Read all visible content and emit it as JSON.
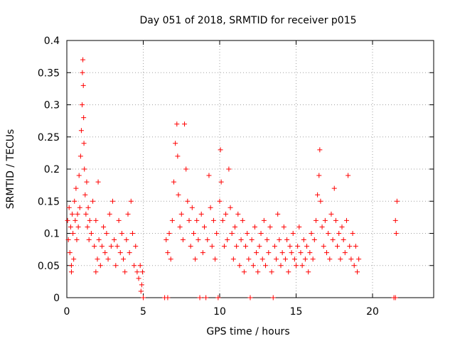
{
  "chart_data": {
    "type": "scatter",
    "title": "Day 051 of 2018, SRMTID for receiver p015",
    "xlabel": "GPS time / hours",
    "ylabel": "SRMTID / TECUs",
    "xlim": [
      0,
      24
    ],
    "ylim": [
      0,
      0.4
    ],
    "xticks": [
      0,
      5,
      10,
      15,
      20
    ],
    "xtick_labels": [
      "0",
      "5",
      "10",
      "15",
      "20"
    ],
    "yticks": [
      0,
      0.05,
      0.1,
      0.15,
      0.2,
      0.25,
      0.3,
      0.35,
      0.4
    ],
    "ytick_labels": [
      "0",
      "0.05",
      "0.1",
      "0.15",
      "0.2",
      "0.25",
      "0.3",
      "0.35",
      "0.4"
    ],
    "grid": true,
    "marker": "+",
    "color": "#ff0000",
    "series": [
      {
        "name": "SRMTID",
        "points": [
          [
            0.05,
            0.12
          ],
          [
            0.1,
            0.09
          ],
          [
            0.15,
            0.14
          ],
          [
            0.2,
            0.07
          ],
          [
            0.25,
            0.11
          ],
          [
            0.3,
            0.05
          ],
          [
            0.35,
            0.13
          ],
          [
            0.4,
            0.1
          ],
          [
            0.45,
            0.06
          ],
          [
            0.5,
            0.15
          ],
          [
            0.55,
            0.12
          ],
          [
            0.6,
            0.17
          ],
          [
            0.65,
            0.09
          ],
          [
            0.7,
            0.13
          ],
          [
            0.75,
            0.11
          ],
          [
            0.8,
            0.19
          ],
          [
            0.85,
            0.14
          ],
          [
            0.9,
            0.22
          ],
          [
            0.95,
            0.26
          ],
          [
            1.0,
            0.3
          ],
          [
            1.02,
            0.35
          ],
          [
            1.05,
            0.37
          ],
          [
            1.08,
            0.33
          ],
          [
            1.1,
            0.28
          ],
          [
            1.12,
            0.24
          ],
          [
            1.15,
            0.2
          ],
          [
            1.2,
            0.16
          ],
          [
            1.25,
            0.13
          ],
          [
            1.3,
            0.18
          ],
          [
            1.35,
            0.11
          ],
          [
            1.4,
            0.14
          ],
          [
            1.45,
            0.09
          ],
          [
            1.5,
            0.12
          ],
          [
            1.6,
            0.1
          ],
          [
            1.7,
            0.15
          ],
          [
            1.8,
            0.08
          ],
          [
            1.9,
            0.12
          ],
          [
            2.0,
            0.06
          ],
          [
            2.1,
            0.09
          ],
          [
            2.2,
            0.05
          ],
          [
            2.3,
            0.08
          ],
          [
            2.4,
            0.11
          ],
          [
            2.5,
            0.07
          ],
          [
            2.6,
            0.1
          ],
          [
            2.7,
            0.06
          ],
          [
            2.8,
            0.13
          ],
          [
            2.9,
            0.08
          ],
          [
            3.0,
            0.15
          ],
          [
            3.1,
            0.09
          ],
          [
            3.2,
            0.05
          ],
          [
            3.3,
            0.08
          ],
          [
            3.4,
            0.12
          ],
          [
            3.5,
            0.07
          ],
          [
            3.6,
            0.1
          ],
          [
            3.7,
            0.06
          ],
          [
            3.8,
            0.04
          ],
          [
            3.9,
            0.09
          ],
          [
            4.0,
            0.13
          ],
          [
            4.1,
            0.07
          ],
          [
            4.2,
            0.15
          ],
          [
            4.3,
            0.1
          ],
          [
            4.4,
            0.05
          ],
          [
            4.5,
            0.08
          ],
          [
            4.6,
            0.04
          ],
          [
            4.7,
            0.03
          ],
          [
            4.8,
            0.05
          ],
          [
            4.9,
            0.02
          ],
          [
            4.95,
            0.04
          ],
          [
            0.3,
            0.04
          ],
          [
            1.9,
            0.04
          ],
          [
            6.4,
            0.0
          ],
          [
            6.6,
            0.0
          ],
          [
            6.5,
            0.09
          ],
          [
            6.6,
            0.07
          ],
          [
            6.7,
            0.1
          ],
          [
            6.8,
            0.06
          ],
          [
            6.9,
            0.12
          ],
          [
            7.0,
            0.18
          ],
          [
            7.1,
            0.24
          ],
          [
            7.2,
            0.27
          ],
          [
            7.25,
            0.22
          ],
          [
            7.3,
            0.16
          ],
          [
            7.4,
            0.11
          ],
          [
            7.5,
            0.13
          ],
          [
            7.6,
            0.09
          ],
          [
            7.7,
            0.27
          ],
          [
            7.8,
            0.2
          ],
          [
            7.9,
            0.15
          ],
          [
            8.0,
            0.12
          ],
          [
            8.1,
            0.08
          ],
          [
            8.2,
            0.14
          ],
          [
            8.3,
            0.1
          ],
          [
            8.4,
            0.06
          ],
          [
            8.5,
            0.12
          ],
          [
            8.6,
            0.09
          ],
          [
            8.7,
            0.0
          ],
          [
            8.8,
            0.13
          ],
          [
            8.9,
            0.07
          ],
          [
            9.0,
            0.11
          ],
          [
            9.1,
            0.0
          ],
          [
            9.2,
            0.09
          ],
          [
            9.3,
            0.19
          ],
          [
            9.4,
            0.14
          ],
          [
            9.5,
            0.08
          ],
          [
            9.6,
            0.12
          ],
          [
            9.7,
            0.06
          ],
          [
            9.8,
            0.1
          ],
          [
            9.9,
            0.0
          ],
          [
            10.0,
            0.15
          ],
          [
            10.05,
            0.23
          ],
          [
            10.1,
            0.18
          ],
          [
            10.2,
            0.12
          ],
          [
            10.3,
            0.08
          ],
          [
            10.4,
            0.13
          ],
          [
            10.5,
            0.09
          ],
          [
            10.6,
            0.2
          ],
          [
            10.7,
            0.14
          ],
          [
            10.8,
            0.1
          ],
          [
            10.9,
            0.06
          ],
          [
            11.0,
            0.11
          ],
          [
            11.1,
            0.08
          ],
          [
            11.2,
            0.13
          ],
          [
            11.3,
            0.05
          ],
          [
            11.4,
            0.09
          ],
          [
            11.5,
            0.12
          ],
          [
            11.6,
            0.04
          ],
          [
            11.7,
            0.08
          ],
          [
            11.8,
            0.1
          ],
          [
            11.9,
            0.06
          ],
          [
            12.0,
            0.0
          ],
          [
            12.1,
            0.09
          ],
          [
            12.2,
            0.05
          ],
          [
            12.3,
            0.11
          ],
          [
            12.4,
            0.07
          ],
          [
            12.5,
            0.04
          ],
          [
            12.6,
            0.08
          ],
          [
            12.7,
            0.1
          ],
          [
            12.8,
            0.06
          ],
          [
            12.9,
            0.12
          ],
          [
            13.0,
            0.05
          ],
          [
            13.1,
            0.09
          ],
          [
            13.2,
            0.07
          ],
          [
            13.3,
            0.11
          ],
          [
            13.4,
            0.04
          ],
          [
            13.5,
            0.0
          ],
          [
            13.6,
            0.08
          ],
          [
            13.7,
            0.06
          ],
          [
            13.8,
            0.13
          ],
          [
            13.9,
            0.09
          ],
          [
            14.0,
            0.05
          ],
          [
            14.1,
            0.07
          ],
          [
            14.2,
            0.11
          ],
          [
            14.3,
            0.06
          ],
          [
            14.4,
            0.09
          ],
          [
            14.5,
            0.04
          ],
          [
            14.6,
            0.08
          ],
          [
            14.7,
            0.07
          ],
          [
            14.8,
            0.1
          ],
          [
            14.9,
            0.06
          ],
          [
            15.0,
            0.05
          ],
          [
            15.1,
            0.08
          ],
          [
            15.2,
            0.11
          ],
          [
            15.3,
            0.07
          ],
          [
            15.4,
            0.05
          ],
          [
            15.5,
            0.09
          ],
          [
            15.6,
            0.06
          ],
          [
            15.7,
            0.08
          ],
          [
            15.8,
            0.04
          ],
          [
            15.9,
            0.07
          ],
          [
            16.0,
            0.1
          ],
          [
            16.1,
            0.06
          ],
          [
            16.2,
            0.09
          ],
          [
            16.3,
            0.12
          ],
          [
            16.4,
            0.16
          ],
          [
            16.5,
            0.19
          ],
          [
            16.55,
            0.23
          ],
          [
            16.6,
            0.15
          ],
          [
            16.7,
            0.11
          ],
          [
            16.8,
            0.08
          ],
          [
            16.9,
            0.12
          ],
          [
            17.0,
            0.07
          ],
          [
            17.1,
            0.1
          ],
          [
            17.2,
            0.06
          ],
          [
            17.3,
            0.13
          ],
          [
            17.4,
            0.09
          ],
          [
            17.5,
            0.17
          ],
          [
            17.6,
            0.12
          ],
          [
            17.7,
            0.08
          ],
          [
            17.8,
            0.1
          ],
          [
            17.9,
            0.06
          ],
          [
            18.0,
            0.11
          ],
          [
            18.1,
            0.09
          ],
          [
            18.2,
            0.07
          ],
          [
            18.3,
            0.12
          ],
          [
            18.4,
            0.19
          ],
          [
            18.5,
            0.08
          ],
          [
            18.6,
            0.06
          ],
          [
            18.7,
            0.1
          ],
          [
            18.8,
            0.05
          ],
          [
            18.9,
            0.08
          ],
          [
            19.0,
            0.04
          ],
          [
            19.1,
            0.06
          ],
          [
            21.4,
            0.0
          ],
          [
            21.5,
            0.12
          ],
          [
            21.55,
            0.1
          ],
          [
            21.6,
            0.15
          ],
          [
            21.5,
            0.0
          ],
          [
            5.0,
            0.0
          ],
          [
            4.85,
            0.01
          ],
          [
            2.05,
            0.18
          ]
        ]
      }
    ]
  }
}
